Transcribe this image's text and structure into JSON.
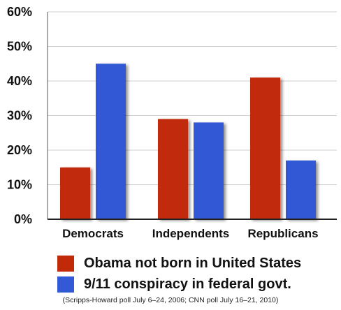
{
  "chart_data": {
    "type": "bar",
    "categories": [
      "Democrats",
      "Independents",
      "Republicans"
    ],
    "series": [
      {
        "name": "Obama not born in United States",
        "color": "#c12a08",
        "values": [
          15,
          29,
          41
        ]
      },
      {
        "name": "9/11 conspiracy in federal govt.",
        "color": "#3359d6",
        "values": [
          45,
          28,
          17
        ]
      }
    ],
    "ylim": [
      0,
      60
    ],
    "yticks": [
      "0%",
      "10%",
      "20%",
      "30%",
      "40%",
      "50%",
      "60%"
    ],
    "grid": true,
    "legend_position": "bottom",
    "annotation": "(Scripps-Howard poll July 6–24, 2006; CNN poll July 16–21, 2010)"
  }
}
